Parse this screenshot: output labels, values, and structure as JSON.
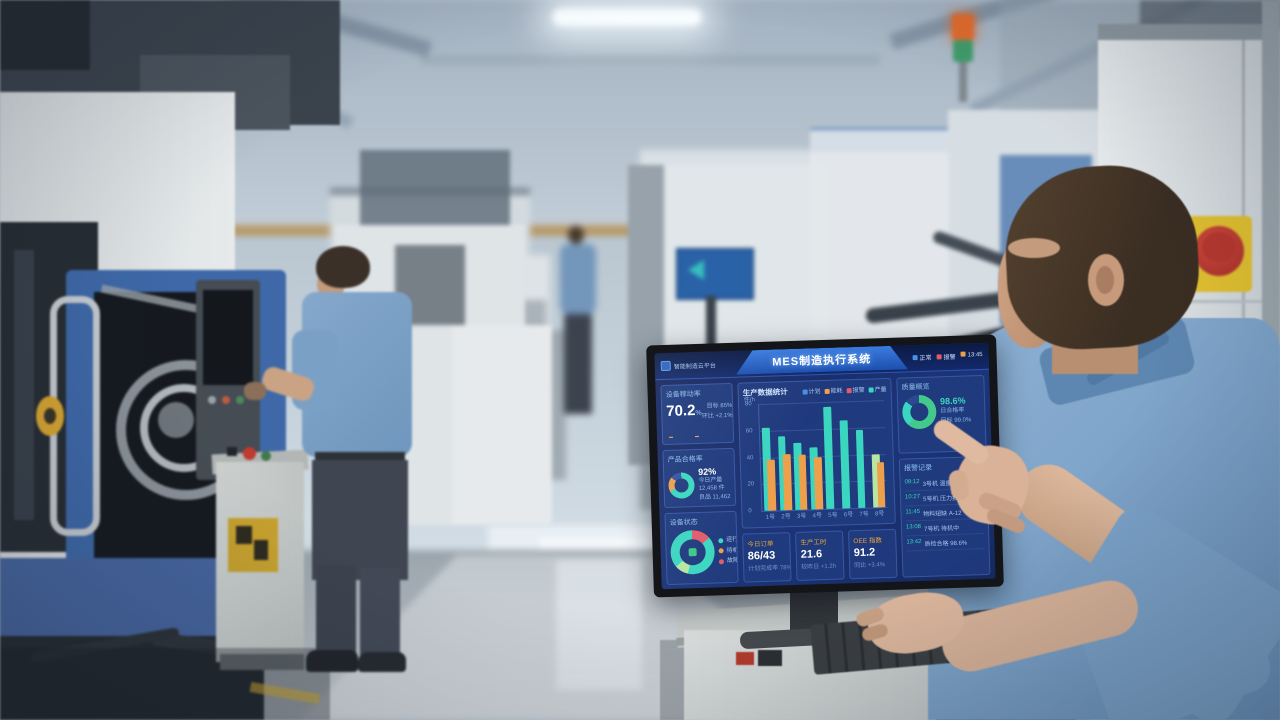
{
  "colors": {
    "teal": "#3bd6c0",
    "orange": "#eda04b",
    "red": "#e25b6a",
    "green": "#43c98c",
    "blue": "#4a90e2",
    "mint": "#b7e6a3",
    "accent-title": "#e8a43c"
  },
  "monitor": {
    "header": {
      "logo_text": "智能制造云平台",
      "title": "MES制造执行系统",
      "status": [
        {
          "label": "正常",
          "color": "#4a90e2"
        },
        {
          "label": "报警",
          "color": "#e25b6a"
        },
        {
          "label": "13:45",
          "color": "#eda04b"
        }
      ]
    },
    "left_cards": [
      {
        "title": "设备稼动率",
        "value": "70.2",
        "unit": "%",
        "lines": [
          "目标 85%",
          "环比 +2.1%"
        ]
      },
      {
        "title": "产品合格率",
        "value": "92%",
        "lines": [
          "今日产量",
          "12,458 件",
          "良品 11,462"
        ]
      },
      {
        "title": "设备状态",
        "items": [
          {
            "label": "运行 18",
            "color": "#3bd6c0"
          },
          {
            "label": "待机 5",
            "color": "#eda04b"
          },
          {
            "label": "故障 2",
            "color": "#e25b6a"
          }
        ]
      }
    ],
    "stats": [
      {
        "title": "今日订单",
        "value": "86/43",
        "sub": "计划完成率 78%"
      },
      {
        "title": "生产工时",
        "value": "21.6",
        "sub": "较昨日 +1.2h"
      },
      {
        "title": "OEE 指数",
        "value": "91.2",
        "sub": "同比 +3.4%"
      }
    ],
    "right_cards": {
      "quality": {
        "title": "质量概览",
        "value": "98.6%",
        "lines": [
          "日合格率",
          "目标 99.0%"
        ]
      },
      "alarms": {
        "title": "报警记录",
        "rows": [
          {
            "time": "09:12",
            "text": "3号机 温度偏高"
          },
          {
            "time": "10:27",
            "text": "5号机 压力报警"
          },
          {
            "time": "11:45",
            "text": "物料短缺 A-12"
          },
          {
            "time": "13:08",
            "text": "7号机 待机中"
          },
          {
            "time": "13:42",
            "text": "质检合格 98.6%"
          }
        ]
      }
    }
  },
  "chart_data": {
    "type": "bar",
    "title": "生产数据统计",
    "unit_label": "件/h",
    "categories": [
      "1号",
      "2号",
      "3号",
      "4号",
      "5号",
      "6号",
      "7号",
      "8号"
    ],
    "series": [
      {
        "name": "产量",
        "color": "#3bd6c0",
        "values": [
          62,
          55,
          50,
          46,
          76,
          66,
          58,
          40
        ]
      },
      {
        "name": "能耗",
        "color": "#eda04b",
        "values": [
          38,
          42,
          41,
          39,
          0,
          0,
          0,
          34
        ]
      }
    ],
    "legend": [
      {
        "name": "计划",
        "color": "#4a90e2"
      },
      {
        "name": "能耗",
        "color": "#eda04b"
      },
      {
        "name": "报警",
        "color": "#e25b6a"
      },
      {
        "name": "产量",
        "color": "#3bd6c0"
      }
    ],
    "yticks": [
      80,
      60,
      40,
      20,
      0
    ],
    "ylim": [
      0,
      80
    ],
    "highlight": {
      "index": 7,
      "color": "#b7e6a3"
    },
    "grid": true,
    "legend_position": "top-right"
  }
}
